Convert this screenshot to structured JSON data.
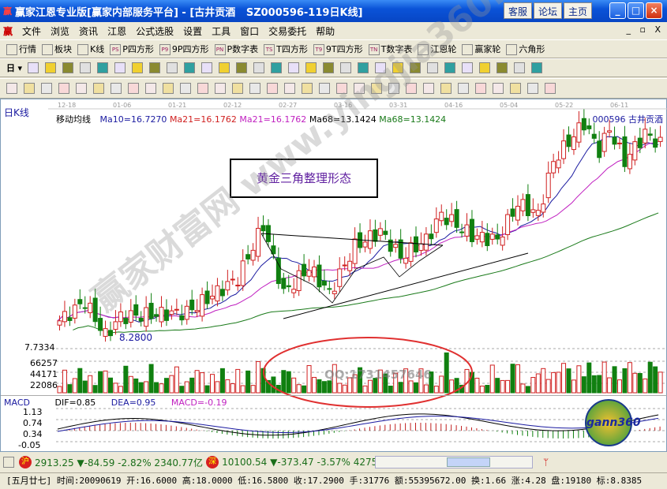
{
  "title": "赢家江恩专业版[赢家内部服务平台] - [古井贡酒   SZ000596-119日K线]",
  "title_buttons": [
    "客服",
    "论坛",
    "主页"
  ],
  "menu": [
    "文件",
    "浏览",
    "资讯",
    "江恩",
    "公式选股",
    "设置",
    "工具",
    "窗口",
    "交易委托",
    "帮助"
  ],
  "toolbar1": [
    {
      "icon": "grid-icon",
      "label": "行情"
    },
    {
      "icon": "blocks-icon",
      "label": "板块"
    },
    {
      "icon": "candles-icon",
      "label": "K线"
    },
    {
      "icon": "PS",
      "label": "P四方形"
    },
    {
      "icon": "P9",
      "label": "9P四方形"
    },
    {
      "icon": "PN",
      "label": "P数字表"
    },
    {
      "icon": "TS",
      "label": "T四方形"
    },
    {
      "icon": "T9",
      "label": "9T四方形"
    },
    {
      "icon": "TN",
      "label": "T数字表"
    },
    {
      "icon": "gann-wheel-icon",
      "label": "江恩轮"
    },
    {
      "icon": "winner-wheel-icon",
      "label": "赢家轮"
    },
    {
      "icon": "hexagon-icon",
      "label": "六角形"
    }
  ],
  "toolbar2_period": "日",
  "chart": {
    "period_label": "日K线",
    "dates": [
      "12-18",
      "01-06",
      "01-21",
      "02-12",
      "02-27",
      "03-16",
      "03-31",
      "04-16",
      "05-04",
      "05-22",
      "06-11"
    ],
    "indicator_name": "移动均线",
    "ma_labels": [
      {
        "text": "Ma10=16.7270",
        "color": "#1a1aa0"
      },
      {
        "text": "Ma21=16.1762",
        "color": "#d02020"
      },
      {
        "text": "Ma21=16.1762",
        "color": "#c020c0"
      },
      {
        "text": "Ma68=13.1424",
        "color": "#000000"
      },
      {
        "text": "Ma68=13.1424",
        "color": "#1a7a1a"
      }
    ],
    "stock_label": "000596 古井贡酒",
    "annotation": "黄金三角整理形态",
    "low_label": "8.2800",
    "price_axis": "7.7334",
    "volume_axis": [
      "66257",
      "44171",
      "22086"
    ],
    "watermark": "赢家财富网 www.yingjia360.com",
    "qq": "QQ:1731457646",
    "chart_data": {
      "type": "candlestick",
      "close_keypoints": [
        [
          0,
          9.0
        ],
        [
          5,
          9.9
        ],
        [
          9,
          8.3
        ],
        [
          12,
          9.2
        ],
        [
          25,
          9.4
        ],
        [
          35,
          11.0
        ],
        [
          40,
          13.5
        ],
        [
          44,
          10.3
        ],
        [
          49,
          11.5
        ],
        [
          53,
          10.3
        ],
        [
          58,
          12.5
        ],
        [
          63,
          13.2
        ],
        [
          67,
          12.0
        ],
        [
          72,
          12.8
        ],
        [
          75,
          14.0
        ],
        [
          81,
          13.0
        ],
        [
          86,
          12.8
        ],
        [
          90,
          14.5
        ],
        [
          94,
          14.0
        ],
        [
          97,
          16.5
        ],
        [
          103,
          18.3
        ],
        [
          106,
          17.0
        ],
        [
          108,
          18.0
        ],
        [
          111,
          16.5
        ],
        [
          115,
          17.8
        ],
        [
          118,
          17.29
        ]
      ]
    }
  },
  "macd": {
    "label": "MACD",
    "dif": "DIF=0.85",
    "dea": "DEA=0.95",
    "macd": "MACD=-0.19",
    "axis": [
      "1.13",
      "0.74",
      "0.34",
      "-0.05"
    ],
    "logo": "gann360"
  },
  "index_bar": {
    "sh_badge": "沪",
    "sh": "2913.25 ▼-84.59 -2.82% 2340.77亿",
    "sz_badge": "深",
    "sz": "10100.54 ▼-373.47 -3.57% 4275."
  },
  "status": "[五月廿七] 时间:20090619 开:16.6000 高:18.0000 低:16.5800 收:17.2900 手:31776 额:55395672.00 换:1.66 涨:4.28 盘:19180 标:8.8385"
}
